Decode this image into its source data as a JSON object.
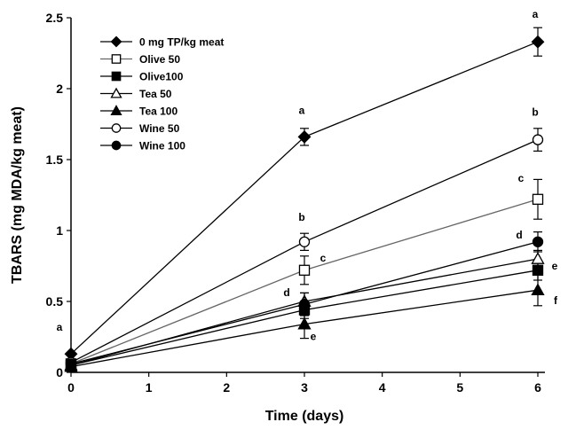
{
  "chart_data": {
    "type": "line",
    "xlabel": "Time (days)",
    "ylabel": "TBARS (mg MDA/kg meat)",
    "x_ticks": [
      "0",
      "1",
      "2",
      "3",
      "4",
      "5",
      "6"
    ],
    "y_ticks": [
      "0",
      "0.5",
      "1",
      "1.5",
      "2",
      "2.5"
    ],
    "xlim": [
      0,
      6
    ],
    "ylim": [
      0,
      2.5
    ],
    "grid": false,
    "legend_position": "top-left",
    "x": [
      0,
      3,
      6
    ],
    "series": [
      {
        "name": "0 mg TP/kg meat",
        "marker": "diamond",
        "fill": "filled",
        "line_color": "#000000",
        "values": [
          0.13,
          1.66,
          2.33
        ],
        "errors": [
          0.0,
          0.06,
          0.1
        ]
      },
      {
        "name": "Olive 50",
        "marker": "square",
        "fill": "open",
        "line_color": "#666666",
        "values": [
          0.06,
          0.72,
          1.22
        ],
        "errors": [
          0.0,
          0.1,
          0.14
        ]
      },
      {
        "name": "Olive100",
        "marker": "square",
        "fill": "filled",
        "line_color": "#000000",
        "values": [
          0.05,
          0.44,
          0.72
        ],
        "errors": [
          0.0,
          0.06,
          0.07
        ]
      },
      {
        "name": "Tea 50",
        "marker": "triangle",
        "fill": "open",
        "line_color": "#000000",
        "values": [
          0.05,
          0.5,
          0.8
        ],
        "errors": [
          0.0,
          0.06,
          0.06
        ]
      },
      {
        "name": "Tea 100",
        "marker": "triangle",
        "fill": "filled",
        "line_color": "#000000",
        "values": [
          0.04,
          0.34,
          0.58
        ],
        "errors": [
          0.0,
          0.1,
          0.11
        ]
      },
      {
        "name": "Wine 50",
        "marker": "circle",
        "fill": "open",
        "line_color": "#000000",
        "values": [
          0.07,
          0.92,
          1.64
        ],
        "errors": [
          0.0,
          0.06,
          0.08
        ]
      },
      {
        "name": "Wine 100",
        "marker": "circle",
        "fill": "filled",
        "line_color": "#000000",
        "values": [
          0.06,
          0.48,
          0.92
        ],
        "errors": [
          0.0,
          0.08,
          0.07
        ]
      }
    ],
    "annotations": [
      {
        "text": "a",
        "x": 0,
        "y": 0.13
      },
      {
        "text": "a",
        "x": 3,
        "y": 1.66
      },
      {
        "text": "b",
        "x": 3,
        "y": 0.92
      },
      {
        "text": "c",
        "x": 3,
        "y": 0.72
      },
      {
        "text": "d",
        "x": 3,
        "y": 0.5
      },
      {
        "text": "e",
        "x": 3,
        "y": 0.34
      },
      {
        "text": "a",
        "x": 6,
        "y": 2.33
      },
      {
        "text": "b",
        "x": 6,
        "y": 1.64
      },
      {
        "text": "c",
        "x": 6,
        "y": 1.22
      },
      {
        "text": "d",
        "x": 6,
        "y": 0.92
      },
      {
        "text": "e",
        "x": 6,
        "y": 0.8
      },
      {
        "text": "f",
        "x": 6,
        "y": 0.58
      }
    ]
  }
}
